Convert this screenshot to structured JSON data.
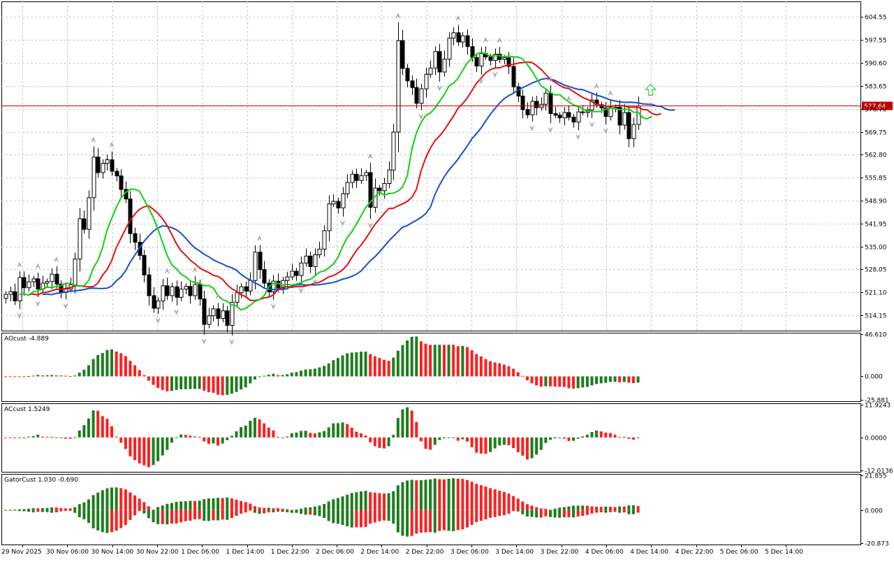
{
  "chart_data": {
    "type": "candlestick",
    "price_pane": {
      "y_ticks": [
        "604.55",
        "597.55",
        "590.60",
        "583.65",
        "576.70",
        "569.75",
        "562.80",
        "555.85",
        "548.90",
        "541.95",
        "535.00",
        "528.05",
        "521.10",
        "514.15"
      ],
      "ylim": [
        509.5,
        609.3
      ],
      "current_price": "577.64",
      "colors": {
        "bull_body": "#ffffff",
        "bear_body": "#000000",
        "alligator_jaw": "#1450c8",
        "alligator_teeth": "#e01010",
        "alligator_lips": "#10d010",
        "price_line": "#c80000",
        "fractal_marker": "#b4b4b4",
        "signal_arrow": "#5ad25a"
      },
      "fractal_markers": "up and down arrow fractals shown above highs and below lows",
      "signal": "up arrow at latest bar"
    },
    "x_labels": [
      "29 Nov 2025",
      "30 Nov 06:00",
      "30 Nov 14:00",
      "30 Nov 22:00",
      "1 Dec 06:00",
      "1 Dec 14:00",
      "1 Dec 22:00",
      "2 Dec 06:00",
      "2 Dec 14:00",
      "2 Dec 22:00",
      "3 Dec 06:00",
      "3 Dec 14:00",
      "3 Dec 22:00",
      "4 Dec 06:00",
      "4 Dec 14:00",
      "4 Dec 22:00",
      "5 Dec 06:00",
      "5 Dec 14:00"
    ],
    "close_series": [
      520.5,
      521.3,
      518.5,
      525.6,
      522.5,
      524.3,
      525.2,
      522.1,
      523.9,
      524.4,
      526.6,
      523.6,
      521.1,
      522.1,
      523.4,
      531.2,
      543.4,
      540.2,
      549.8,
      562.1,
      557.4,
      560.2,
      561.3,
      557.8,
      556.4,
      552.3,
      549.4,
      538.9,
      536.3,
      532.3,
      526.4,
      520.1,
      516.3,
      518.5,
      523.1,
      520.1,
      522.8,
      519.6,
      522.1,
      522.9,
      520.1,
      523.5,
      519.1,
      511.4,
      514.0,
      516.1,
      513.2,
      515.5,
      511.1,
      518.1,
      521.0,
      522.8,
      521.5,
      524.7,
      533.3,
      528.0,
      523.9,
      521.3,
      524.5,
      522.4,
      524.7,
      525.8,
      527.5,
      526.2,
      530.0,
      532.1,
      528.9,
      532.5,
      534.2,
      539.8,
      547.9,
      548.7,
      546.7,
      551.0,
      554.4,
      556.9,
      555.0,
      556.5,
      557.4,
      546.9,
      552.7,
      551.9,
      554.1,
      558.2,
      569.7,
      597.4,
      589.0,
      585.2,
      583.2,
      578.4,
      582.8,
      587.2,
      589.1,
      594.1,
      587.9,
      591.8,
      598.2,
      599.8,
      597.0,
      598.9,
      595.6,
      592.3,
      589.7,
      593.5,
      592.5,
      591.4,
      593.3,
      591.7,
      592.2,
      589.6,
      583.4,
      580.6,
      576.5,
      574.9,
      579.0,
      577.1,
      578.1,
      581.5,
      575.3,
      574.8,
      574.0,
      575.6,
      574.2,
      572.7,
      575.8,
      575.6,
      576.4,
      579.4,
      578.0,
      577.0,
      574.4,
      577.1,
      577.2,
      571.8,
      575.6,
      567.7,
      572.0,
      577.6
    ],
    "ao": {
      "label": "AOcust -4.889",
      "y_ticks": [
        "46.610",
        "0.000",
        "-25.881"
      ],
      "ylim": [
        -25.881,
        46.61
      ],
      "colors": {
        "up": "#1e7d1e",
        "down": "#ff1e1e"
      }
    },
    "ac": {
      "label": "ACcust 1.5249",
      "y_ticks": [
        "11.9243",
        "0.0000",
        "-12.0136"
      ],
      "ylim": [
        -12.0136,
        11.9243
      ],
      "colors": {
        "up": "#1e7d1e",
        "down": "#ff1e1e"
      }
    },
    "gator": {
      "label": "GatorCust 1.030 -0.690",
      "y_ticks": [
        "21.855",
        "0.000",
        "-20.873"
      ],
      "ylim": [
        -20.873,
        21.855
      ],
      "colors": {
        "up": "#1e7d1e",
        "down": "#ff1e1e"
      }
    }
  }
}
